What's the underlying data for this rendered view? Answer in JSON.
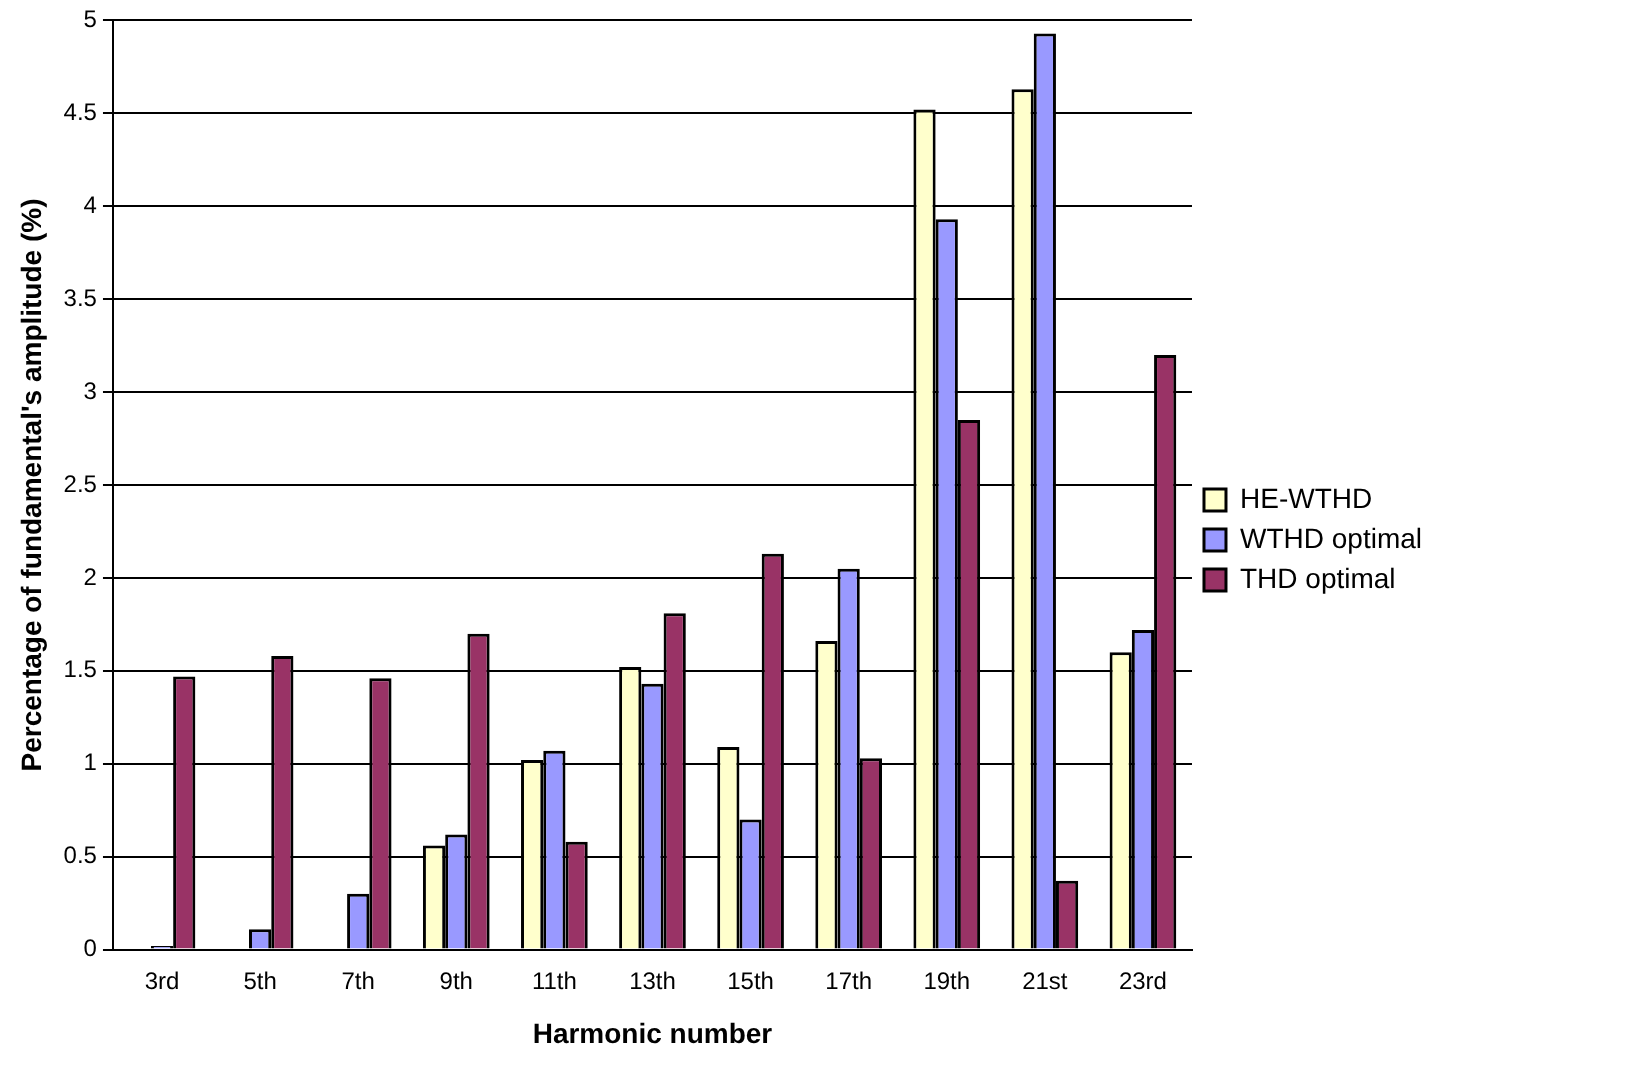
{
  "chart_data": {
    "type": "bar",
    "xlabel": "Harmonic number",
    "ylabel": "Percentage of fundamental's amplitude (%)",
    "categories": [
      "3rd",
      "5th",
      "7th",
      "9th",
      "11th",
      "13th",
      "15th",
      "17th",
      "19th",
      "21st",
      "23rd"
    ],
    "series": [
      {
        "name": "HE-WTHD",
        "color": "#ffffcc",
        "values": [
          null,
          null,
          null,
          0.56,
          1.02,
          1.52,
          1.09,
          1.66,
          4.52,
          4.63,
          1.6
        ]
      },
      {
        "name": "WTHD optimal",
        "color": "#9999ff",
        "values": [
          0.02,
          0.11,
          0.3,
          0.62,
          1.07,
          1.43,
          0.7,
          2.05,
          3.93,
          4.93,
          1.72
        ]
      },
      {
        "name": "THD optimal",
        "color": "#993366",
        "values": [
          1.47,
          1.58,
          1.46,
          1.7,
          0.58,
          1.81,
          2.13,
          1.03,
          2.85,
          0.37,
          3.2
        ]
      }
    ],
    "ylim": [
      0,
      5
    ],
    "yticks": [
      0,
      0.5,
      1,
      1.5,
      2,
      2.5,
      3,
      3.5,
      4,
      4.5,
      5
    ],
    "grid": "y",
    "legend": "right"
  }
}
